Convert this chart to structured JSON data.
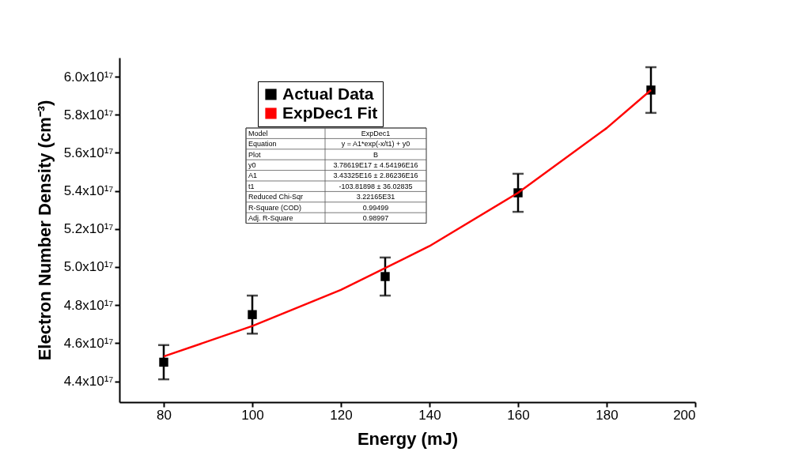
{
  "chart_data": {
    "type": "scatter",
    "xlabel": "Energy (mJ)",
    "ylabel": "Electron Number Density (cm⁻³)",
    "xlim": [
      70,
      200
    ],
    "xticks": [
      80,
      100,
      120,
      140,
      160,
      180,
      200
    ],
    "ylim": [
      4.29e+17,
      6.1e+17
    ],
    "yticks": [
      {
        "value": 4.4e+17,
        "label": "4.4x10¹⁷"
      },
      {
        "value": 4.6e+17,
        "label": "4.6x10¹⁷"
      },
      {
        "value": 4.8e+17,
        "label": "4.8x10¹⁷"
      },
      {
        "value": 5e+17,
        "label": "5.0x10¹⁷"
      },
      {
        "value": 5.2e+17,
        "label": "5.2x10¹⁷"
      },
      {
        "value": 5.4e+17,
        "label": "5.4x10¹⁷"
      },
      {
        "value": 5.6e+17,
        "label": "5.6x10¹⁷"
      },
      {
        "value": 5.8e+17,
        "label": "5.8x10¹⁷"
      },
      {
        "value": 6e+17,
        "label": "6.0x10¹⁷"
      }
    ],
    "legend": "top left",
    "grid": false,
    "series": [
      {
        "name": "Actual Data",
        "marker": "square",
        "color": "#000000",
        "x": [
          80,
          100,
          130,
          160,
          190
        ],
        "values": [
          4.5e+17,
          4.75e+17,
          4.95e+17,
          5.39e+17,
          5.93e+17
        ],
        "errors": [
          9000000000000000.0,
          1e+16,
          1e+16,
          1e+16,
          1.2e+16
        ]
      },
      {
        "name": "ExpDec1 Fit",
        "type": "line",
        "line_style": "solid",
        "color": "#ff0000",
        "x": [
          80,
          100,
          120,
          140,
          160,
          180,
          190
        ],
        "values": [
          4.53e+17,
          4.69e+17,
          4.88e+17,
          5.11e+17,
          5.39e+17,
          5.73e+17,
          5.93e+17
        ]
      }
    ],
    "annotations": [
      "Model",
      "ExpDec1",
      "Equation",
      "y = A1*exp(-x/t1) + y0",
      "Plot",
      "B",
      "y0",
      "3.78619E17 ± 4.54196E16",
      "A1",
      "3.43325E16 ± 2.86236E16",
      "t1",
      "-103.81898 ± 36.02835",
      "Reduced Chi-Sqr",
      "3.22165E31",
      "R-Square (COD)",
      "0.99499",
      "Adj. R-Square",
      "0.98997"
    ]
  }
}
